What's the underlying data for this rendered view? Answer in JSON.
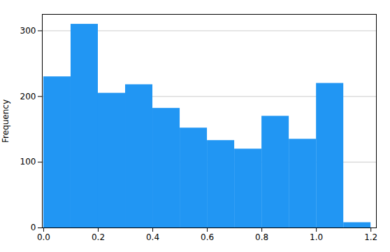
{
  "chart_data": {
    "type": "histogram",
    "bins": [
      0.0,
      0.1,
      0.2,
      0.3,
      0.4,
      0.5,
      0.6,
      0.7,
      0.8,
      0.9,
      1.0,
      1.1,
      1.2
    ],
    "values": [
      230,
      310,
      205,
      218,
      182,
      152,
      133,
      120,
      170,
      135,
      220,
      8
    ],
    "color": "#2196F3",
    "ylabel": "Frequency",
    "xlim": [
      -0.005,
      1.22
    ],
    "ylim": [
      0,
      325
    ],
    "xticks": [
      {
        "value": 0,
        "label": "0.0"
      },
      0.2,
      0.4,
      0.6,
      0.8,
      {
        "value": 1,
        "label": "1.0"
      },
      1.2
    ],
    "yticks": [
      0,
      100,
      200,
      300
    ],
    "grid": true
  }
}
